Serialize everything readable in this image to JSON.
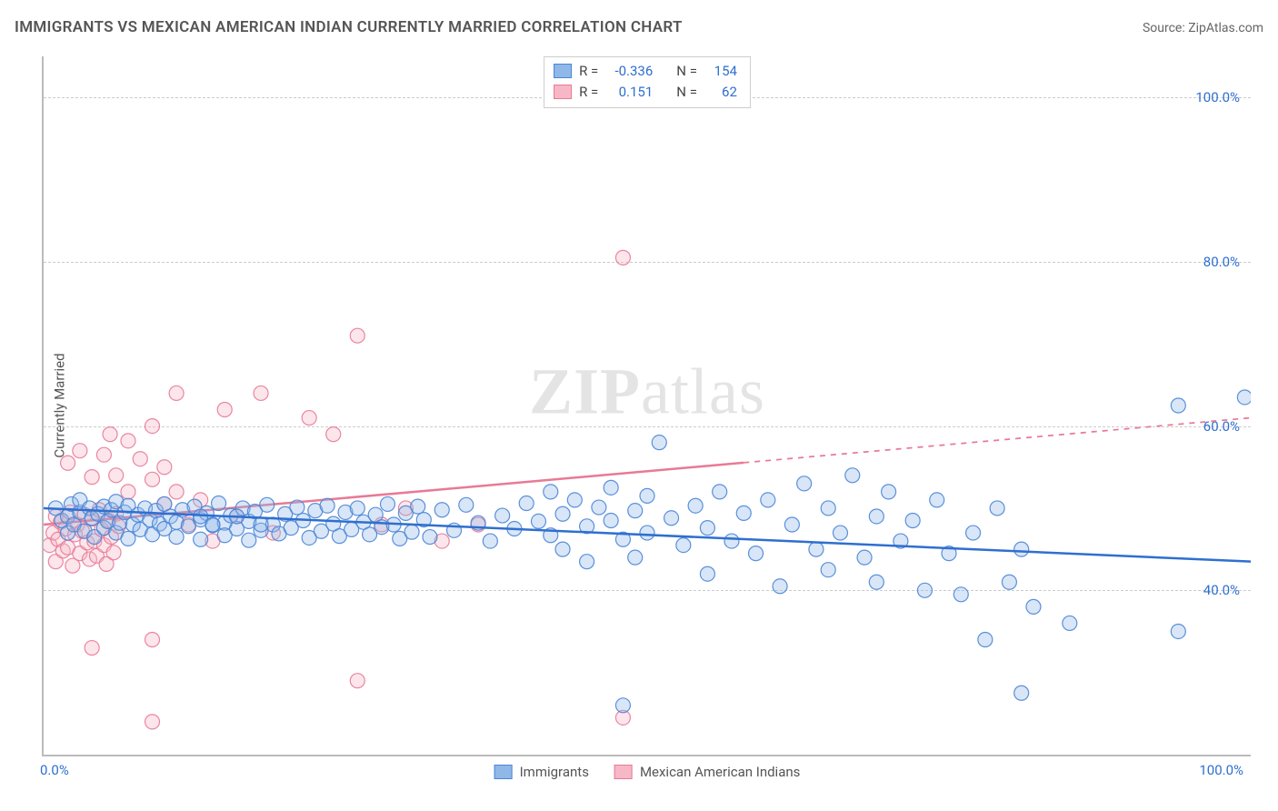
{
  "header": {
    "title": "IMMIGRANTS VS MEXICAN AMERICAN INDIAN CURRENTLY MARRIED CORRELATION CHART",
    "source_prefix": "Source: ",
    "source_name": "ZipAtlas.com"
  },
  "axes": {
    "ylabel": "Currently Married",
    "xlim": [
      0,
      100
    ],
    "ylim": [
      20,
      105
    ],
    "yticks": [
      40,
      60,
      80,
      100
    ],
    "ytick_labels": [
      "40.0%",
      "60.0%",
      "80.0%",
      "100.0%"
    ],
    "xtick_left": "0.0%",
    "xtick_right": "100.0%"
  },
  "style": {
    "bg": "#ffffff",
    "grid_color": "#cccccc",
    "axis_color": "#bbbbbb",
    "tick_label_color": "#2f6fd0",
    "blue_fill": "#8fb8e8",
    "blue_stroke": "#4a85d6",
    "blue_line": "#2f6fd0",
    "pink_fill": "#f7b7c6",
    "pink_stroke": "#e87a96",
    "pink_line": "#e87a96",
    "marker_radius": 8,
    "line_width": 2.5
  },
  "legend_top": {
    "rows": [
      {
        "swatch": "blue",
        "r_label": "R =",
        "r_val": "-0.336",
        "n_label": "N =",
        "n_val": "154"
      },
      {
        "swatch": "pink",
        "r_label": "R =",
        "r_val": "0.151",
        "n_label": "N =",
        "n_val": "62"
      }
    ]
  },
  "legend_bottom": {
    "items": [
      {
        "swatch": "blue",
        "label": "Immigrants"
      },
      {
        "swatch": "pink",
        "label": "Mexican American Indians"
      }
    ]
  },
  "watermark": {
    "zip": "ZIP",
    "atlas": "atlas"
  },
  "series": {
    "blue": {
      "trend": {
        "x1": 0,
        "y1": 50,
        "x2": 100,
        "y2": 43.5,
        "dash_from_x": null
      },
      "points": [
        [
          1,
          50
        ],
        [
          1.5,
          48.5
        ],
        [
          2,
          49
        ],
        [
          2,
          47
        ],
        [
          2.3,
          50.5
        ],
        [
          2.5,
          48
        ],
        [
          3,
          49.5
        ],
        [
          3,
          51
        ],
        [
          3.4,
          47.2
        ],
        [
          3.8,
          50
        ],
        [
          4,
          48.8
        ],
        [
          4.2,
          46.5
        ],
        [
          4.5,
          49.3
        ],
        [
          5,
          50.2
        ],
        [
          5,
          47.6
        ],
        [
          5.3,
          48.4
        ],
        [
          5.6,
          49.8
        ],
        [
          6,
          47
        ],
        [
          6,
          50.8
        ],
        [
          6.3,
          48.2
        ],
        [
          6.7,
          49.5
        ],
        [
          7,
          46.3
        ],
        [
          7,
          50.3
        ],
        [
          7.4,
          48
        ],
        [
          7.8,
          49.2
        ],
        [
          8,
          47.4
        ],
        [
          8.4,
          50
        ],
        [
          8.8,
          48.6
        ],
        [
          9,
          46.8
        ],
        [
          9.3,
          49.7
        ],
        [
          9.6,
          48.1
        ],
        [
          10,
          50.5
        ],
        [
          10,
          47.5
        ],
        [
          10.5,
          49
        ],
        [
          11,
          48.3
        ],
        [
          11,
          46.5
        ],
        [
          11.5,
          49.8
        ],
        [
          12,
          47.8
        ],
        [
          12.5,
          50.2
        ],
        [
          13,
          48.6
        ],
        [
          13,
          46.2
        ],
        [
          13.5,
          49.4
        ],
        [
          14,
          47.9
        ],
        [
          14.5,
          50.6
        ],
        [
          15,
          48.2
        ],
        [
          15,
          46.7
        ],
        [
          15.5,
          49.1
        ],
        [
          16,
          47.5
        ],
        [
          16.5,
          50
        ],
        [
          17,
          48.4
        ],
        [
          17,
          46.1
        ],
        [
          17.5,
          49.6
        ],
        [
          18,
          47.3
        ],
        [
          18.5,
          50.4
        ],
        [
          19,
          48
        ],
        [
          19.5,
          46.9
        ],
        [
          20,
          49.3
        ],
        [
          20.5,
          47.6
        ],
        [
          21,
          50.1
        ],
        [
          21.5,
          48.5
        ],
        [
          22,
          46.4
        ],
        [
          22.5,
          49.7
        ],
        [
          23,
          47.2
        ],
        [
          23.5,
          50.3
        ],
        [
          24,
          48.1
        ],
        [
          24.5,
          46.6
        ],
        [
          25,
          49.5
        ],
        [
          25.5,
          47.4
        ],
        [
          26,
          50
        ],
        [
          26.5,
          48.3
        ],
        [
          27,
          46.8
        ],
        [
          27.5,
          49.2
        ],
        [
          28,
          47.7
        ],
        [
          28.5,
          50.5
        ],
        [
          29,
          48
        ],
        [
          29.5,
          46.3
        ],
        [
          30,
          49.4
        ],
        [
          30.5,
          47.1
        ],
        [
          31,
          50.2
        ],
        [
          31.5,
          48.6
        ],
        [
          32,
          46.5
        ],
        [
          33,
          49.8
        ],
        [
          34,
          47.3
        ],
        [
          35,
          50.4
        ],
        [
          36,
          48.2
        ],
        [
          37,
          46
        ],
        [
          38,
          49.1
        ],
        [
          39,
          47.5
        ],
        [
          40,
          50.6
        ],
        [
          41,
          48.4
        ],
        [
          42,
          46.7
        ],
        [
          42,
          52
        ],
        [
          43,
          49.3
        ],
        [
          43,
          45
        ],
        [
          44,
          51
        ],
        [
          45,
          47.8
        ],
        [
          45,
          43.5
        ],
        [
          46,
          50.1
        ],
        [
          47,
          48.5
        ],
        [
          47,
          52.5
        ],
        [
          48,
          46.2
        ],
        [
          49,
          49.7
        ],
        [
          49,
          44
        ],
        [
          50,
          51.5
        ],
        [
          50,
          47
        ],
        [
          51,
          58
        ],
        [
          52,
          48.8
        ],
        [
          53,
          45.5
        ],
        [
          54,
          50.3
        ],
        [
          55,
          42
        ],
        [
          55,
          47.6
        ],
        [
          56,
          52
        ],
        [
          57,
          46
        ],
        [
          58,
          49.4
        ],
        [
          59,
          44.5
        ],
        [
          60,
          51
        ],
        [
          61,
          40.5
        ],
        [
          62,
          48
        ],
        [
          63,
          53
        ],
        [
          64,
          45
        ],
        [
          65,
          50
        ],
        [
          65,
          42.5
        ],
        [
          66,
          47
        ],
        [
          67,
          54
        ],
        [
          68,
          44
        ],
        [
          69,
          49
        ],
        [
          69,
          41
        ],
        [
          70,
          52
        ],
        [
          71,
          46
        ],
        [
          72,
          48.5
        ],
        [
          73,
          40
        ],
        [
          74,
          51
        ],
        [
          75,
          44.5
        ],
        [
          76,
          39.5
        ],
        [
          77,
          47
        ],
        [
          78,
          34
        ],
        [
          79,
          50
        ],
        [
          80,
          41
        ],
        [
          81,
          45
        ],
        [
          82,
          38
        ],
        [
          85,
          36
        ],
        [
          94,
          62.5
        ],
        [
          94,
          35
        ],
        [
          99.5,
          63.5
        ],
        [
          48,
          26
        ],
        [
          81,
          27.5
        ],
        [
          13,
          49
        ],
        [
          14,
          48
        ],
        [
          16,
          49
        ],
        [
          18,
          48
        ]
      ]
    },
    "pink": {
      "trend": {
        "x1": 0,
        "y1": 48,
        "x2": 100,
        "y2": 61,
        "dash_from_x": 58
      },
      "points": [
        [
          0.5,
          45.5
        ],
        [
          0.8,
          47
        ],
        [
          1,
          49
        ],
        [
          1,
          43.5
        ],
        [
          1.2,
          46.2
        ],
        [
          1.4,
          48.3
        ],
        [
          1.6,
          44.8
        ],
        [
          1.8,
          47.5
        ],
        [
          2,
          45.2
        ],
        [
          2.2,
          49.5
        ],
        [
          2.4,
          43
        ],
        [
          2.6,
          46.8
        ],
        [
          2.8,
          48
        ],
        [
          3,
          44.5
        ],
        [
          3.2,
          47.2
        ],
        [
          3.4,
          49.2
        ],
        [
          3.6,
          45.8
        ],
        [
          3.8,
          43.8
        ],
        [
          4,
          48.7
        ],
        [
          4.2,
          46
        ],
        [
          4.4,
          44.2
        ],
        [
          4.6,
          49.8
        ],
        [
          4.8,
          47.4
        ],
        [
          5,
          45.5
        ],
        [
          5.2,
          43.2
        ],
        [
          5.4,
          48.5
        ],
        [
          5.6,
          46.5
        ],
        [
          5.8,
          44.6
        ],
        [
          6,
          49.3
        ],
        [
          6.2,
          47.8
        ],
        [
          2,
          55.5
        ],
        [
          3,
          57
        ],
        [
          4,
          53.8
        ],
        [
          5,
          56.5
        ],
        [
          5.5,
          59
        ],
        [
          6,
          54
        ],
        [
          7,
          58.2
        ],
        [
          7,
          52
        ],
        [
          8,
          56
        ],
        [
          9,
          53.5
        ],
        [
          9,
          60
        ],
        [
          10,
          55
        ],
        [
          10,
          50.5
        ],
        [
          11,
          52
        ],
        [
          11,
          64
        ],
        [
          12,
          48
        ],
        [
          13,
          51
        ],
        [
          14,
          46
        ],
        [
          15,
          62
        ],
        [
          16,
          49
        ],
        [
          18,
          64
        ],
        [
          19,
          47
        ],
        [
          22,
          61
        ],
        [
          24,
          59
        ],
        [
          26,
          71
        ],
        [
          28,
          48
        ],
        [
          30,
          50
        ],
        [
          33,
          46
        ],
        [
          36,
          48
        ],
        [
          48,
          80.5
        ],
        [
          4,
          33
        ],
        [
          9,
          34
        ],
        [
          26,
          29
        ],
        [
          9,
          24
        ],
        [
          48,
          24.5
        ]
      ]
    }
  }
}
